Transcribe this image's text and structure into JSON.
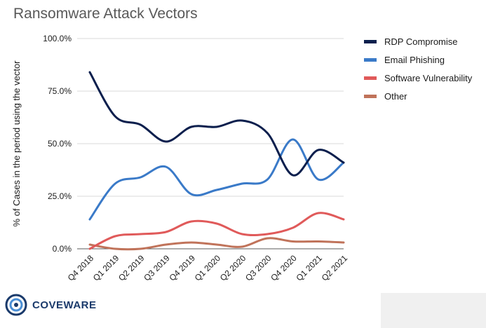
{
  "title": "Ransomware Attack Vectors",
  "logo": {
    "text": "COVEWARE"
  },
  "chart_data": {
    "type": "line",
    "title": "Ransomware Attack Vectors",
    "xlabel": "",
    "ylabel": "% of Cases in the period using the vector",
    "categories": [
      "Q4 2018",
      "Q1 2019",
      "Q2 2019",
      "Q3 2019",
      "Q4 2019",
      "Q1 2020",
      "Q2 2020",
      "Q3 2020",
      "Q4 2020",
      "Q1 2021",
      "Q2 2021"
    ],
    "ylim": [
      0,
      100
    ],
    "yticks": [
      "0.0%",
      "25.0%",
      "50.0%",
      "75.0%",
      "100.0%"
    ],
    "grid": true,
    "legend_position": "right",
    "series": [
      {
        "name": "RDP Compromise",
        "color": "#0b1f4d",
        "values": [
          84,
          63,
          59,
          51,
          58,
          58,
          61,
          55,
          35,
          47,
          41
        ]
      },
      {
        "name": "Email Phishing",
        "color": "#3a7ac8",
        "values": [
          14,
          31,
          34,
          39,
          26,
          28,
          31,
          33,
          52,
          33,
          41
        ]
      },
      {
        "name": "Software Vulnerability",
        "color": "#e05a5a",
        "values": [
          0,
          6,
          7,
          8,
          13,
          12,
          7,
          7,
          10,
          17,
          14
        ]
      },
      {
        "name": "Other",
        "color": "#c0735a",
        "values": [
          2,
          0,
          0,
          2,
          3,
          2,
          1,
          5,
          3.5,
          3.5,
          3
        ]
      }
    ]
  }
}
